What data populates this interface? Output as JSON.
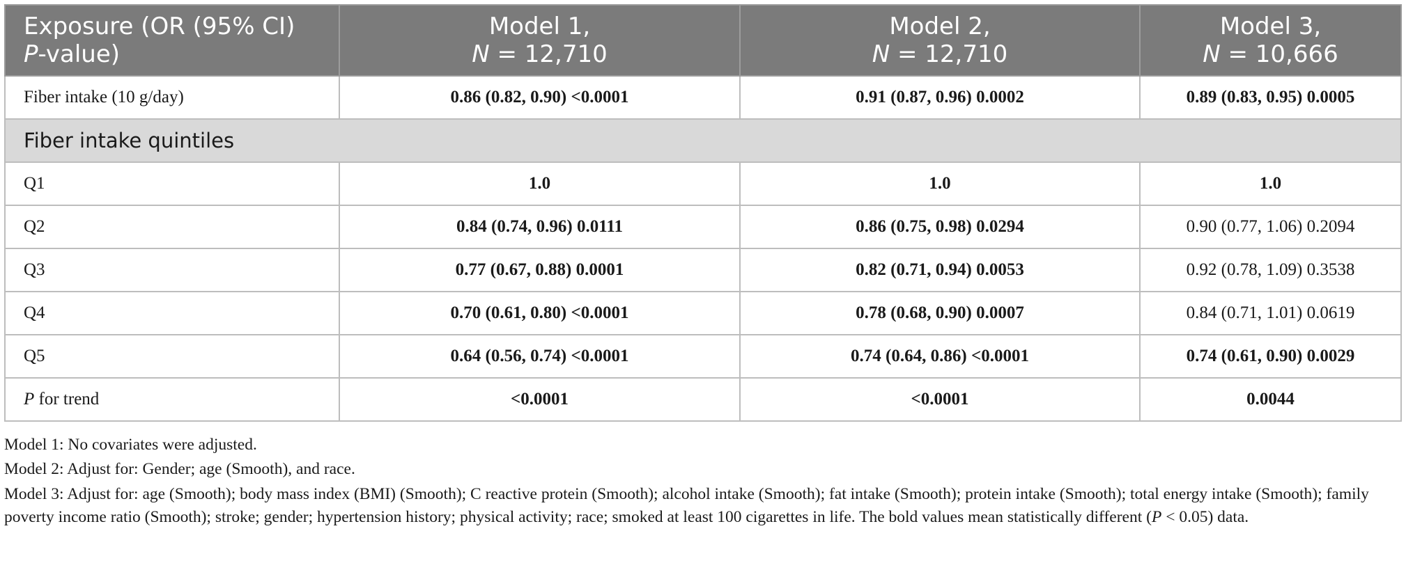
{
  "table": {
    "headers": {
      "exposure_line1": "Exposure (OR (95% CI)",
      "exposure_p": "P",
      "exposure_line2_rest": "-value)",
      "model1_line1": "Model 1,",
      "model1_n": "N",
      "model1_line2_rest": " = 12,710",
      "model2_line1": "Model 2,",
      "model2_n": "N",
      "model2_line2_rest": " = 12,710",
      "model3_line1": "Model 3,",
      "model3_n": "N",
      "model3_line2_rest": " = 10,666"
    },
    "fiber_row": {
      "label": "Fiber intake (10 g/day)",
      "m1": "0.86 (0.82, 0.90)  <0.0001",
      "m2": "0.91 (0.87, 0.96) 0.0002",
      "m3": "0.89 (0.83, 0.95) 0.0005"
    },
    "section_label": "Fiber intake quintiles",
    "rows": [
      {
        "label": "Q1",
        "m1": "1.0",
        "m2": "1.0",
        "m3": "1.0"
      },
      {
        "label": "Q2",
        "m1": "0.84 (0.74, 0.96) 0.0111",
        "m2": "0.86 (0.75, 0.98) 0.0294",
        "m3": "0.90 (0.77, 1.06) 0.2094"
      },
      {
        "label": "Q3",
        "m1": "0.77 (0.67, 0.88) 0.0001",
        "m2": "0.82 (0.71, 0.94) 0.0053",
        "m3": "0.92 (0.78, 1.09) 0.3538"
      },
      {
        "label": "Q4",
        "m1": "0.70 (0.61, 0.80)  <0.0001",
        "m2": "0.78 (0.68, 0.90) 0.0007",
        "m3": "0.84 (0.71, 1.01) 0.0619"
      },
      {
        "label": "Q5",
        "m1": "0.64 (0.56, 0.74)  <0.0001",
        "m2": "0.74 (0.64, 0.86)  <0.0001",
        "m3": "0.74 (0.61, 0.90) 0.0029"
      }
    ],
    "trend_row": {
      "label_p": "P",
      "label_rest": " for trend",
      "m1": "<0.0001",
      "m2": "<0.0001",
      "m3": "0.0044"
    }
  },
  "notes": {
    "model1": "Model 1: No covariates were adjusted.",
    "model2": "Model 2: Adjust for: Gender; age (Smooth), and race.",
    "model3_a": "Model 3: Adjust for: age (Smooth); body mass index (BMI) (Smooth); C reactive protein (Smooth); alcohol intake (Smooth); fat intake (Smooth); protein intake (Smooth); total energy intake (Smooth); family poverty income ratio (Smooth); stroke; gender; hypertension history; physical activity; race; smoked at least 100 cigarettes in life. The bold values mean statistically different (",
    "model3_p": "P",
    "model3_b": " < 0.05) data."
  }
}
